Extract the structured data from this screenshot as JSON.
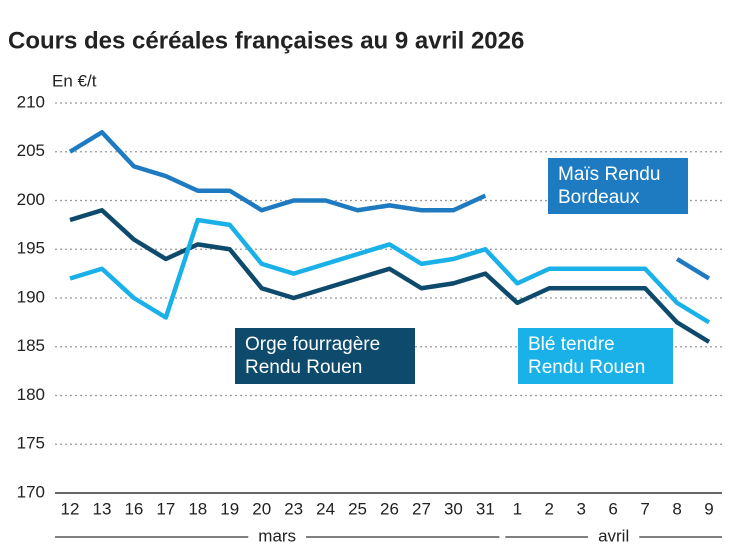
{
  "chart_data": {
    "type": "line",
    "title": "Cours des céréales françaises au 9 avril 2026",
    "y_label": "En €/t",
    "categories": [
      "12",
      "13",
      "16",
      "17",
      "18",
      "19",
      "20",
      "23",
      "24",
      "25",
      "26",
      "27",
      "30",
      "31",
      "1",
      "2",
      "3",
      "6",
      "7",
      "8",
      "9"
    ],
    "category_groups": [
      "mars",
      "mars",
      "mars",
      "mars",
      "mars",
      "mars",
      "mars",
      "mars",
      "mars",
      "mars",
      "mars",
      "mars",
      "mars",
      "mars",
      "avril",
      "avril",
      "avril",
      "avril",
      "avril",
      "avril",
      "avril"
    ],
    "series": [
      {
        "name": "Maïs Rendu Bordeaux",
        "color": "#1f7bc1",
        "values": [
          205,
          207,
          203.5,
          202.5,
          201,
          201,
          199,
          200,
          200,
          199,
          199.5,
          199,
          199,
          200.5,
          null,
          null,
          null,
          null,
          null,
          194,
          192
        ]
      },
      {
        "name": "Orge fourragère Rendu Rouen",
        "color": "#0d4a6b",
        "values": [
          198,
          199,
          196,
          194,
          195.5,
          195,
          191,
          190,
          191,
          192,
          193,
          191,
          191.5,
          192.5,
          189.5,
          191,
          191,
          191,
          191,
          187.5,
          185.5
        ]
      },
      {
        "name": "Blé tendre Rendu Rouen",
        "color": "#1ab0e8",
        "values": [
          192,
          193,
          190,
          188,
          198,
          197.5,
          193.5,
          192.5,
          193.5,
          194.5,
          195.5,
          193.5,
          194,
          195,
          191.5,
          193,
          193,
          193,
          193,
          189.5,
          187.5
        ]
      }
    ],
    "ylim": [
      170,
      210
    ],
    "yticks": [
      170,
      175,
      180,
      185,
      190,
      195,
      200,
      205,
      210
    ],
    "grid": true
  }
}
